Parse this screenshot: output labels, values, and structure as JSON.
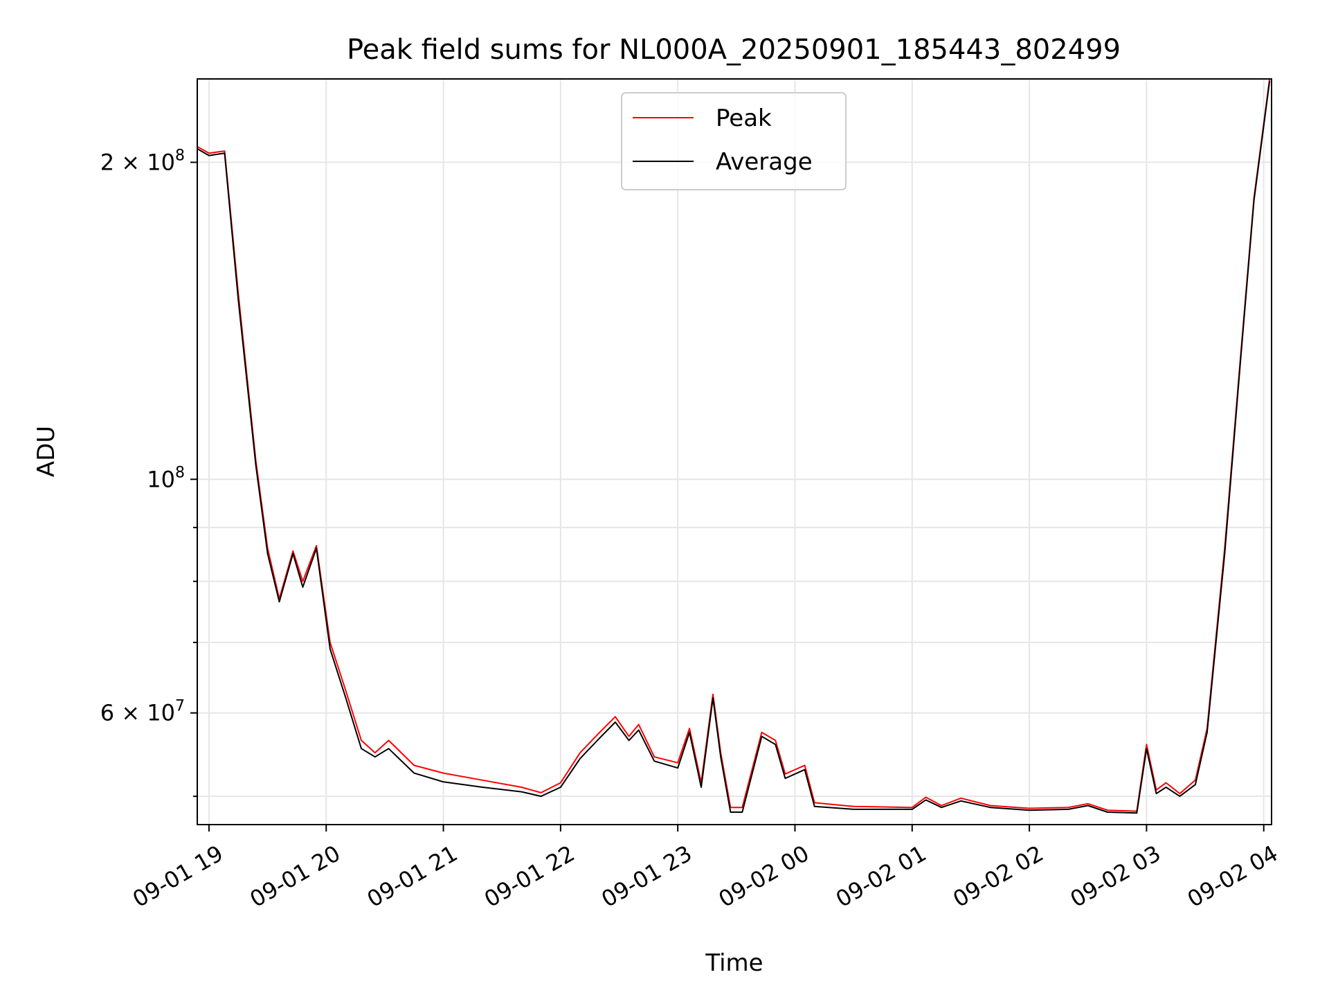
{
  "chart_data": {
    "type": "line",
    "title": "Peak field sums for NL000A_20250901_185443_802499",
    "xlabel": "Time",
    "ylabel": "ADU",
    "y_scale": "log",
    "grid": true,
    "legend_position": "upper center",
    "x_range": [
      "2025-09-01 18:54",
      "2025-09-02 04:04"
    ],
    "y_range": [
      47000000,
      240000000
    ],
    "x_ticks": [
      {
        "t": "2025-09-01 19:00",
        "label": "09-01 19"
      },
      {
        "t": "2025-09-01 20:00",
        "label": "09-01 20"
      },
      {
        "t": "2025-09-01 21:00",
        "label": "09-01 21"
      },
      {
        "t": "2025-09-01 22:00",
        "label": "09-01 22"
      },
      {
        "t": "2025-09-01 23:00",
        "label": "09-01 23"
      },
      {
        "t": "2025-09-02 00:00",
        "label": "09-02 00"
      },
      {
        "t": "2025-09-02 01:00",
        "label": "09-02 01"
      },
      {
        "t": "2025-09-02 02:00",
        "label": "09-02 02"
      },
      {
        "t": "2025-09-02 03:00",
        "label": "09-02 03"
      },
      {
        "t": "2025-09-02 04:00",
        "label": "09-02 04"
      }
    ],
    "y_major_ticks": [
      {
        "value": 200000000,
        "mantissa": "2",
        "exp": "8"
      },
      {
        "value": 100000000,
        "mantissa": "",
        "exp": "8"
      },
      {
        "value": 60000000,
        "mantissa": "6",
        "exp": "7"
      }
    ],
    "y_minor_ticks": [
      50000000,
      70000000,
      80000000,
      90000000
    ],
    "series": [
      {
        "name": "Peak",
        "color": "#ff0000",
        "points": [
          [
            "2025-09-01 18:54",
            207000000
          ],
          [
            "2025-09-01 19:00",
            204000000
          ],
          [
            "2025-09-01 19:08",
            205000000
          ],
          [
            "2025-09-01 19:15",
            150000000
          ],
          [
            "2025-09-01 19:24",
            104000000
          ],
          [
            "2025-09-01 19:30",
            86000000
          ],
          [
            "2025-09-01 19:36",
            77000000
          ],
          [
            "2025-09-01 19:43",
            85500000
          ],
          [
            "2025-09-01 19:48",
            80000000
          ],
          [
            "2025-09-01 19:55",
            86500000
          ],
          [
            "2025-09-01 20:02",
            70000000
          ],
          [
            "2025-09-01 20:10",
            63000000
          ],
          [
            "2025-09-01 20:18",
            56500000
          ],
          [
            "2025-09-01 20:25",
            55000000
          ],
          [
            "2025-09-01 20:32",
            56500000
          ],
          [
            "2025-09-01 20:45",
            53500000
          ],
          [
            "2025-09-01 21:00",
            52600000
          ],
          [
            "2025-09-01 21:20",
            51800000
          ],
          [
            "2025-09-01 21:40",
            51000000
          ],
          [
            "2025-09-01 21:50",
            50400000
          ],
          [
            "2025-09-01 22:00",
            51500000
          ],
          [
            "2025-09-01 22:10",
            55000000
          ],
          [
            "2025-09-01 22:20",
            57500000
          ],
          [
            "2025-09-01 22:28",
            59500000
          ],
          [
            "2025-09-01 22:35",
            57000000
          ],
          [
            "2025-09-01 22:40",
            58500000
          ],
          [
            "2025-09-01 22:48",
            54500000
          ],
          [
            "2025-09-01 23:00",
            53800000
          ],
          [
            "2025-09-01 23:06",
            58000000
          ],
          [
            "2025-09-01 23:12",
            51500000
          ],
          [
            "2025-09-01 23:18",
            62500000
          ],
          [
            "2025-09-01 23:22",
            55000000
          ],
          [
            "2025-09-01 23:27",
            48800000
          ],
          [
            "2025-09-01 23:33",
            48800000
          ],
          [
            "2025-09-01 23:43",
            57500000
          ],
          [
            "2025-09-01 23:50",
            56500000
          ],
          [
            "2025-09-01 23:55",
            52500000
          ],
          [
            "2025-09-02 00:05",
            53500000
          ],
          [
            "2025-09-02 00:10",
            49300000
          ],
          [
            "2025-09-02 00:30",
            48900000
          ],
          [
            "2025-09-02 01:00",
            48800000
          ],
          [
            "2025-09-02 01:07",
            49900000
          ],
          [
            "2025-09-02 01:15",
            49000000
          ],
          [
            "2025-09-02 01:25",
            49800000
          ],
          [
            "2025-09-02 01:40",
            49000000
          ],
          [
            "2025-09-02 02:00",
            48700000
          ],
          [
            "2025-09-02 02:20",
            48800000
          ],
          [
            "2025-09-02 02:30",
            49200000
          ],
          [
            "2025-09-02 02:40",
            48500000
          ],
          [
            "2025-09-02 02:55",
            48400000
          ],
          [
            "2025-09-02 03:00",
            56000000
          ],
          [
            "2025-09-02 03:05",
            50700000
          ],
          [
            "2025-09-02 03:10",
            51500000
          ],
          [
            "2025-09-02 03:17",
            50300000
          ],
          [
            "2025-09-02 03:25",
            51800000
          ],
          [
            "2025-09-02 03:31",
            58000000
          ],
          [
            "2025-09-02 03:40",
            86000000
          ],
          [
            "2025-09-02 03:48",
            130000000
          ],
          [
            "2025-09-02 03:55",
            185000000
          ],
          [
            "2025-09-02 04:03",
            240000000
          ]
        ]
      },
      {
        "name": "Average",
        "color": "#000000",
        "points": [
          [
            "2025-09-01 18:54",
            206000000
          ],
          [
            "2025-09-01 19:00",
            203000000
          ],
          [
            "2025-09-01 19:08",
            204000000
          ],
          [
            "2025-09-01 19:15",
            148000000
          ],
          [
            "2025-09-01 19:24",
            103000000
          ],
          [
            "2025-09-01 19:30",
            85000000
          ],
          [
            "2025-09-01 19:36",
            76500000
          ],
          [
            "2025-09-01 19:43",
            85000000
          ],
          [
            "2025-09-01 19:48",
            79000000
          ],
          [
            "2025-09-01 19:55",
            86000000
          ],
          [
            "2025-09-01 20:02",
            69000000
          ],
          [
            "2025-09-01 20:10",
            62000000
          ],
          [
            "2025-09-01 20:18",
            55500000
          ],
          [
            "2025-09-01 20:25",
            54500000
          ],
          [
            "2025-09-01 20:32",
            55500000
          ],
          [
            "2025-09-01 20:45",
            52600000
          ],
          [
            "2025-09-01 21:00",
            51600000
          ],
          [
            "2025-09-01 21:20",
            51000000
          ],
          [
            "2025-09-01 21:40",
            50500000
          ],
          [
            "2025-09-01 21:50",
            50000000
          ],
          [
            "2025-09-01 22:00",
            51000000
          ],
          [
            "2025-09-01 22:10",
            54300000
          ],
          [
            "2025-09-01 22:20",
            56800000
          ],
          [
            "2025-09-01 22:28",
            58800000
          ],
          [
            "2025-09-01 22:35",
            56500000
          ],
          [
            "2025-09-01 22:40",
            57800000
          ],
          [
            "2025-09-01 22:48",
            54000000
          ],
          [
            "2025-09-01 23:00",
            53200000
          ],
          [
            "2025-09-01 23:06",
            57500000
          ],
          [
            "2025-09-01 23:12",
            51000000
          ],
          [
            "2025-09-01 23:18",
            62000000
          ],
          [
            "2025-09-01 23:22",
            54500000
          ],
          [
            "2025-09-01 23:27",
            48300000
          ],
          [
            "2025-09-01 23:33",
            48300000
          ],
          [
            "2025-09-01 23:43",
            57000000
          ],
          [
            "2025-09-01 23:50",
            56000000
          ],
          [
            "2025-09-01 23:55",
            52000000
          ],
          [
            "2025-09-02 00:05",
            53000000
          ],
          [
            "2025-09-02 00:10",
            48900000
          ],
          [
            "2025-09-02 00:30",
            48600000
          ],
          [
            "2025-09-02 01:00",
            48600000
          ],
          [
            "2025-09-02 01:07",
            49600000
          ],
          [
            "2025-09-02 01:15",
            48800000
          ],
          [
            "2025-09-02 01:25",
            49500000
          ],
          [
            "2025-09-02 01:40",
            48800000
          ],
          [
            "2025-09-02 02:00",
            48500000
          ],
          [
            "2025-09-02 02:20",
            48600000
          ],
          [
            "2025-09-02 02:30",
            49000000
          ],
          [
            "2025-09-02 02:40",
            48300000
          ],
          [
            "2025-09-02 02:55",
            48200000
          ],
          [
            "2025-09-02 03:00",
            55500000
          ],
          [
            "2025-09-02 03:05",
            50300000
          ],
          [
            "2025-09-02 03:10",
            51000000
          ],
          [
            "2025-09-02 03:17",
            50000000
          ],
          [
            "2025-09-02 03:25",
            51300000
          ],
          [
            "2025-09-02 03:31",
            57500000
          ],
          [
            "2025-09-02 03:40",
            85000000
          ],
          [
            "2025-09-02 03:48",
            129000000
          ],
          [
            "2025-09-02 03:55",
            184000000
          ],
          [
            "2025-09-02 04:03",
            239000000
          ]
        ]
      }
    ]
  }
}
